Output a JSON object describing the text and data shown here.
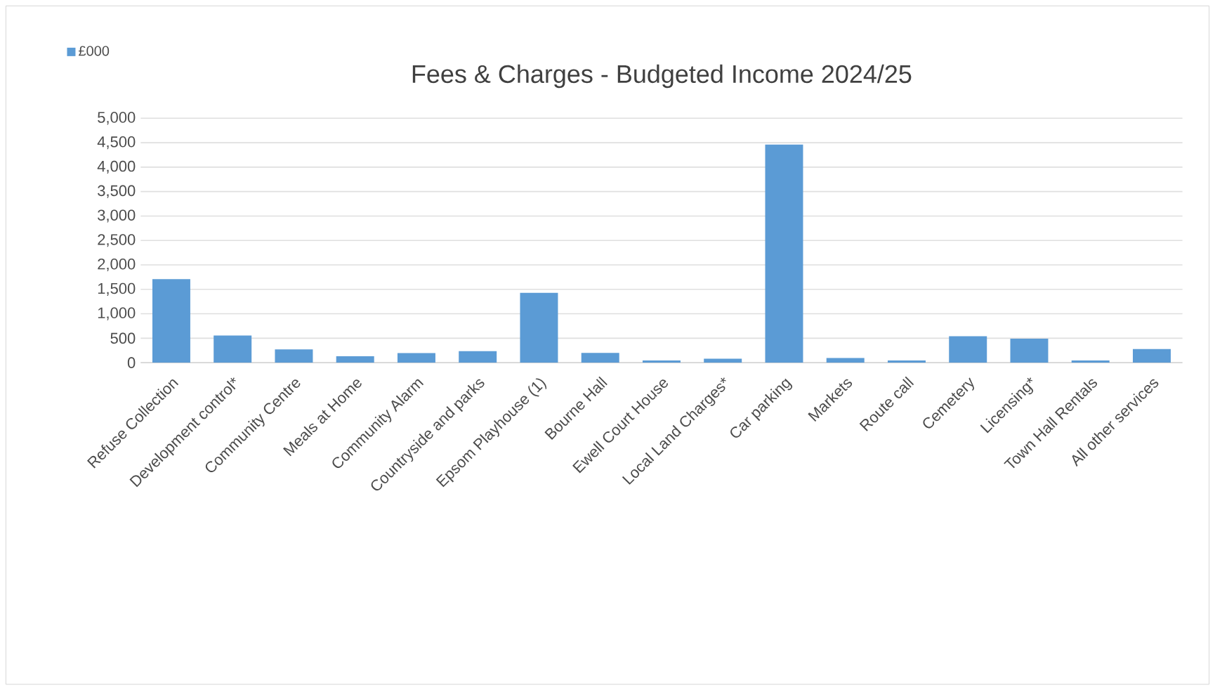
{
  "chart_data": {
    "type": "bar",
    "title": "Fees & Charges - Budgeted Income 2024/25",
    "categories": [
      "Refuse Collection",
      "Development control*",
      "Community Centre",
      "Meals at Home",
      "Community Alarm",
      "Countryside and parks",
      "Epsom Playhouse (1)",
      "Bourne Hall",
      "Ewell Court House",
      "Local Land Charges*",
      "Car parking",
      "Markets",
      "Route call",
      "Cemetery",
      "Licensing*",
      "Town Hall Rentals",
      "All other services"
    ],
    "series": [
      {
        "name": "£000",
        "color": "#5b9bd5",
        "values": [
          1710,
          556,
          270,
          130,
          195,
          235,
          1430,
          200,
          45,
          80,
          4460,
          95,
          45,
          540,
          490,
          45,
          280
        ]
      }
    ],
    "ylim": [
      0,
      5000
    ],
    "yticks": [
      {
        "value": 0,
        "label": "0"
      },
      {
        "value": 500,
        "label": "500"
      },
      {
        "value": 1000,
        "label": "1,000"
      },
      {
        "value": 1500,
        "label": "1,500"
      },
      {
        "value": 2000,
        "label": "2,000"
      },
      {
        "value": 2500,
        "label": "2,500"
      },
      {
        "value": 3000,
        "label": "3,000"
      },
      {
        "value": 3500,
        "label": "3,500"
      },
      {
        "value": 4000,
        "label": "4,000"
      },
      {
        "value": 4500,
        "label": "4,500"
      },
      {
        "value": 5000,
        "label": "5,000"
      }
    ],
    "grid": "y",
    "legend": "top left"
  }
}
